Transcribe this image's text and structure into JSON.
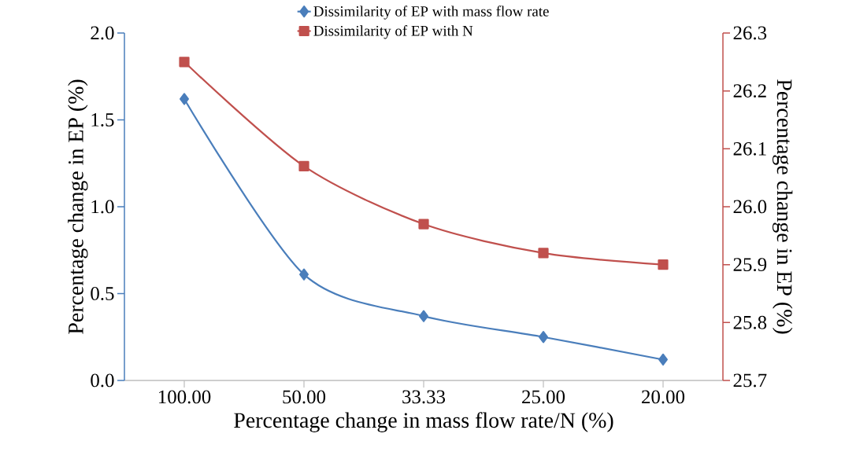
{
  "chart_data": {
    "type": "line",
    "categories": [
      "100.00",
      "50.00",
      "33.33",
      "25.00",
      "20.00"
    ],
    "xlabel": "Percentage change in mass flow rate/N (%)",
    "ylabel": "Percentage change in EP (%)",
    "y2label": "Percentage change in EP (%)",
    "ylim": [
      0,
      2
    ],
    "yticks": [
      {
        "value": 0,
        "label": "0.0"
      },
      0.5,
      {
        "value": 1,
        "label": "1.0"
      },
      1.5,
      {
        "value": 2,
        "label": "2.0"
      }
    ],
    "y2lim": [
      25.7,
      26.3
    ],
    "y2ticks": [
      25.7,
      25.8,
      25.9,
      {
        "value": 26,
        "label": "26.0"
      },
      26.1,
      26.2,
      26.3
    ],
    "legend": "top",
    "grid": false,
    "series": [
      {
        "name": "Dissimilarity of EP with mass flow rate",
        "color": "#4a7ebb",
        "marker": "diamond",
        "values": [
          1.62,
          0.61,
          0.37,
          0.25,
          0.12
        ]
      },
      {
        "name": "Dissimilarity of EP with N",
        "color": "#c0504d",
        "marker": "square",
        "axis": "y2",
        "values": [
          26.25,
          26.07,
          25.97,
          25.92,
          25.9
        ]
      }
    ]
  }
}
